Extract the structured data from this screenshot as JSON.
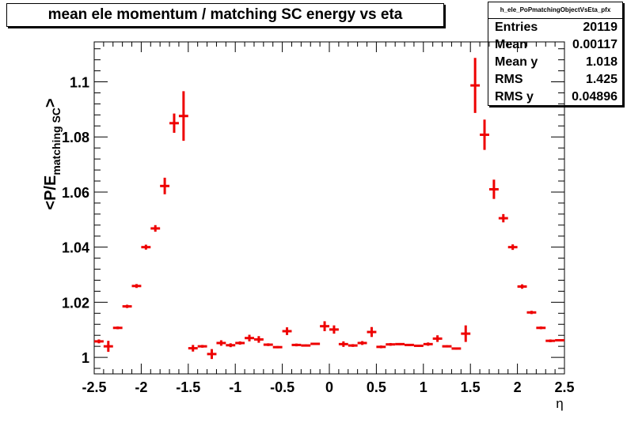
{
  "title": "mean ele momentum / matching SC energy vs eta",
  "stats": {
    "name": "h_ele_PoPmatchingObjectVsEta_pfx",
    "rows": [
      {
        "label": "Entries",
        "value": "20119"
      },
      {
        "label": "Mean",
        "value": "0.00117"
      },
      {
        "label": "Mean y",
        "value": "1.018"
      },
      {
        "label": "RMS",
        "value": "1.425"
      },
      {
        "label": "RMS y",
        "value": "0.04896"
      }
    ]
  },
  "chart_data": {
    "type": "scatter",
    "title": "mean ele momentum / matching SC energy vs eta",
    "xlabel": "η",
    "ylabel_main": "<P/E",
    "ylabel_sub": "matching SC",
    "ylabel_end": ">",
    "xlim": [
      -2.5,
      2.5
    ],
    "ylim": [
      0.994,
      1.1145
    ],
    "x_ticks": [
      -2.5,
      -2,
      -1.5,
      -1,
      -0.5,
      0,
      0.5,
      1,
      1.5,
      2,
      2.5
    ],
    "x_tick_labels": [
      "-2.5",
      "-2",
      "-1.5",
      "-1",
      "-0.5",
      "0",
      "0.5",
      "1",
      "1.5",
      "2",
      "2.5"
    ],
    "y_ticks": [
      1.0,
      1.02,
      1.04,
      1.06,
      1.08,
      1.1
    ],
    "y_tick_labels": [
      "1",
      "1.02",
      "1.04",
      "1.06",
      "1.08",
      "1.1"
    ],
    "bin_width": 0.1,
    "color": "#ee0000",
    "x": [
      -2.45,
      -2.35,
      -2.25,
      -2.15,
      -2.05,
      -1.95,
      -1.85,
      -1.75,
      -1.65,
      -1.55,
      -1.45,
      -1.35,
      -1.25,
      -1.15,
      -1.05,
      -0.95,
      -0.85,
      -0.75,
      -0.65,
      -0.55,
      -0.45,
      -0.35,
      -0.25,
      -0.15,
      -0.05,
      0.05,
      0.15,
      0.25,
      0.35,
      0.45,
      0.55,
      0.65,
      0.75,
      0.85,
      0.95,
      1.05,
      1.15,
      1.25,
      1.35,
      1.45,
      1.55,
      1.65,
      1.75,
      1.85,
      1.95,
      2.05,
      2.15,
      2.25,
      2.35,
      2.45
    ],
    "y": [
      1.0058,
      1.004,
      1.0107,
      1.0185,
      1.0259,
      1.04,
      1.0468,
      1.0622,
      1.085,
      1.0876,
      1.0033,
      1.004,
      1.0012,
      1.0052,
      1.0044,
      1.0052,
      1.007,
      1.0065,
      1.0046,
      1.0037,
      1.0095,
      1.0045,
      1.0043,
      1.0049,
      1.0113,
      1.0101,
      1.0048,
      1.0043,
      1.0052,
      1.0092,
      1.0038,
      1.0047,
      1.0048,
      1.0045,
      1.0042,
      1.0048,
      1.0068,
      1.004,
      1.0032,
      1.0086,
      1.0987,
      1.0808,
      1.061,
      1.0505,
      1.04,
      1.0257,
      1.0163,
      1.0107,
      1.006,
      1.0062
    ],
    "yerr": [
      0.0007,
      0.002,
      0.0005,
      0.0006,
      0.0007,
      0.0009,
      0.0012,
      0.003,
      0.0035,
      0.009,
      0.0012,
      0.0005,
      0.0018,
      0.001,
      0.0007,
      0.0006,
      0.0012,
      0.0012,
      0.0005,
      0.0004,
      0.0014,
      0.0005,
      0.0004,
      0.0004,
      0.0018,
      0.0015,
      0.001,
      0.0005,
      0.0007,
      0.0018,
      0.0005,
      0.0005,
      0.0004,
      0.0004,
      0.0004,
      0.0006,
      0.0012,
      0.0004,
      0.0004,
      0.003,
      0.01,
      0.0055,
      0.0035,
      0.0015,
      0.001,
      0.0008,
      0.0006,
      0.0005,
      0.0005,
      0.0004
    ]
  }
}
